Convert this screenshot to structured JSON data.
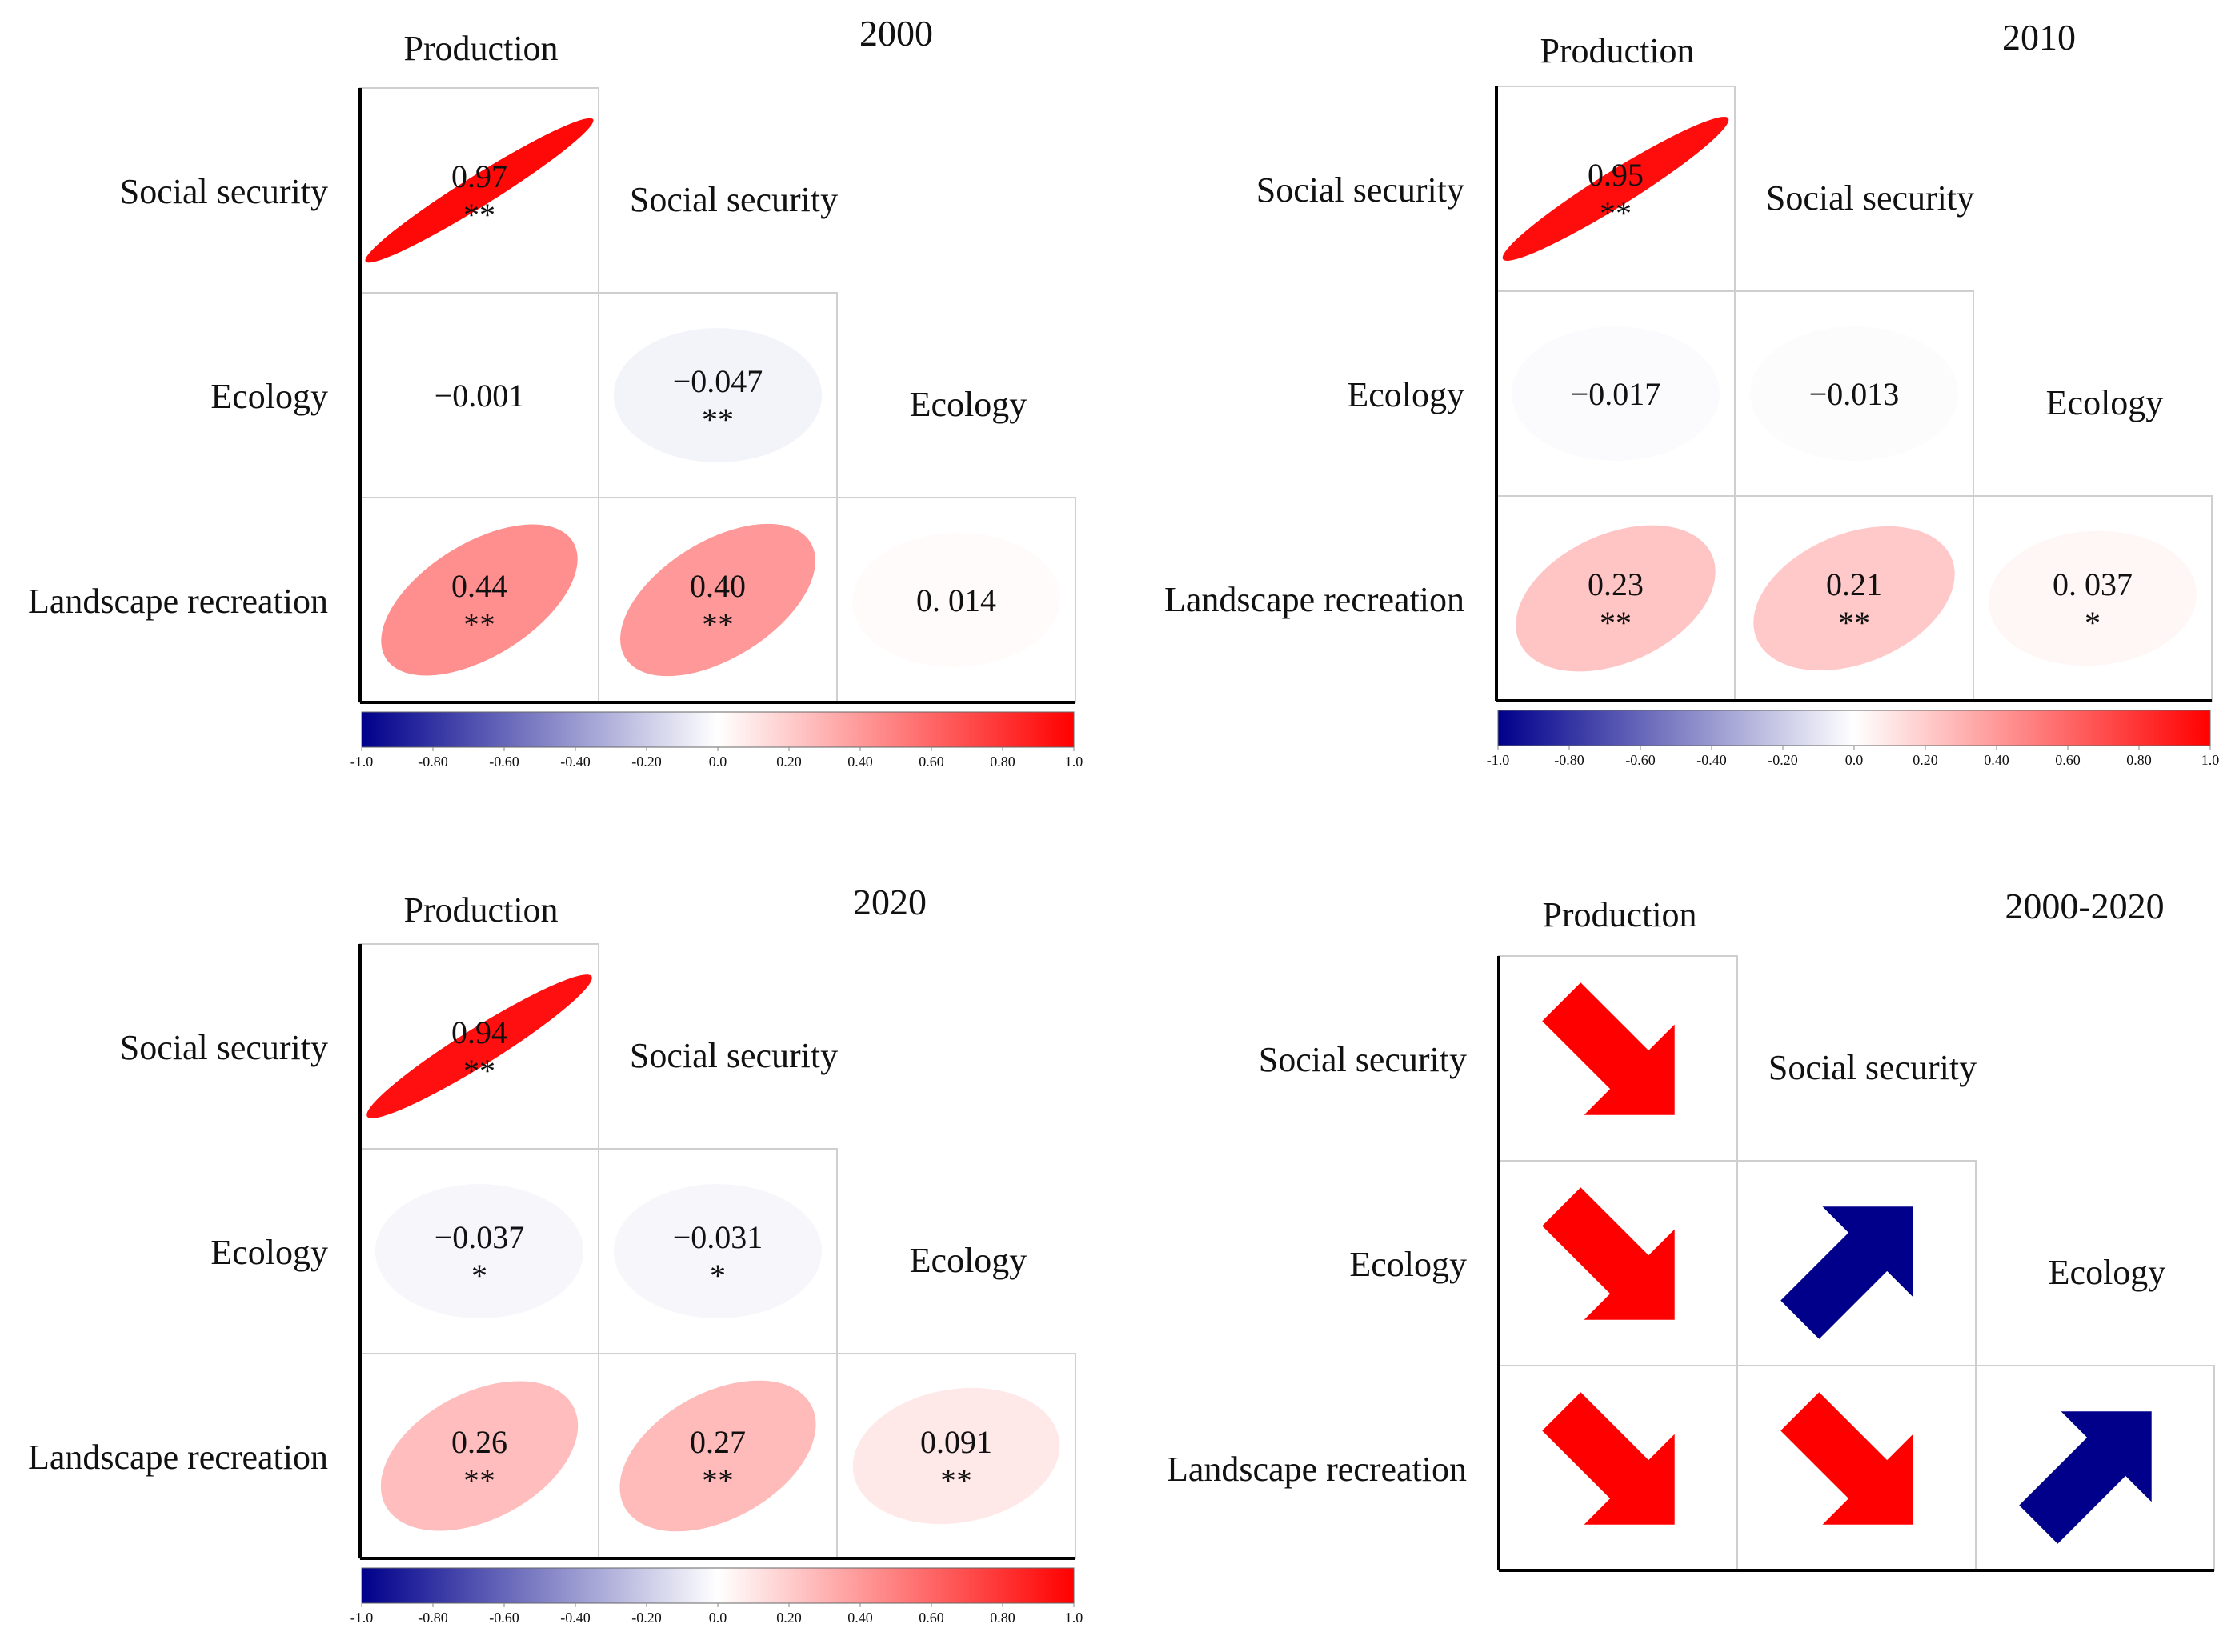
{
  "figure": {
    "row_labels": [
      "Social security",
      "Ecology",
      "Landscape recreation"
    ],
    "column_labels": [
      "Production",
      "Social security",
      "Ecology"
    ]
  },
  "chart_data": [
    {
      "type": "heatmap",
      "title": "2000",
      "row_labels": [
        "Social security",
        "Ecology",
        "Landscape recreation"
      ],
      "column_labels": [
        "Production",
        "Social security",
        "Ecology"
      ],
      "cells": [
        {
          "row": 0,
          "col": 0,
          "value": 0.97,
          "label": "0.97",
          "sig": "**"
        },
        {
          "row": 1,
          "col": 0,
          "value": -0.001,
          "label": "−0.001",
          "sig": ""
        },
        {
          "row": 1,
          "col": 1,
          "value": -0.047,
          "label": "−0.047",
          "sig": "**"
        },
        {
          "row": 2,
          "col": 0,
          "value": 0.44,
          "label": "0.44",
          "sig": "**"
        },
        {
          "row": 2,
          "col": 1,
          "value": 0.4,
          "label": "0.40",
          "sig": "**"
        },
        {
          "row": 2,
          "col": 2,
          "value": 0.014,
          "label": "0. 014",
          "sig": ""
        }
      ],
      "colorbar": {
        "range": [
          -1.0,
          1.0
        ],
        "ticks": [
          "-1.0",
          "-0.80",
          "-0.60",
          "-0.40",
          "-0.20",
          "0.0",
          "0.20",
          "0.40",
          "0.60",
          "0.80",
          "1.0"
        ],
        "low_color": "#00008b",
        "mid_color": "#ffffff",
        "high_color": "#ff0000"
      }
    },
    {
      "type": "heatmap",
      "title": "2010",
      "row_labels": [
        "Social security",
        "Ecology",
        "Landscape recreation"
      ],
      "column_labels": [
        "Production",
        "Social security",
        "Ecology"
      ],
      "cells": [
        {
          "row": 0,
          "col": 0,
          "value": 0.95,
          "label": "0.95",
          "sig": "**"
        },
        {
          "row": 1,
          "col": 0,
          "value": -0.017,
          "label": "−0.017",
          "sig": ""
        },
        {
          "row": 1,
          "col": 1,
          "value": -0.013,
          "label": "−0.013",
          "sig": ""
        },
        {
          "row": 2,
          "col": 0,
          "value": 0.23,
          "label": "0.23",
          "sig": "**"
        },
        {
          "row": 2,
          "col": 1,
          "value": 0.21,
          "label": "0.21",
          "sig": "**"
        },
        {
          "row": 2,
          "col": 2,
          "value": 0.037,
          "label": "0. 037",
          "sig": "*"
        }
      ],
      "colorbar": {
        "range": [
          -1.0,
          1.0
        ],
        "ticks": [
          "-1.0",
          "-0.80",
          "-0.60",
          "-0.40",
          "-0.20",
          "0.0",
          "0.20",
          "0.40",
          "0.60",
          "0.80",
          "1.0"
        ],
        "low_color": "#00008b",
        "mid_color": "#ffffff",
        "high_color": "#ff0000"
      }
    },
    {
      "type": "heatmap",
      "title": "2020",
      "row_labels": [
        "Social security",
        "Ecology",
        "Landscape recreation"
      ],
      "column_labels": [
        "Production",
        "Social security",
        "Ecology"
      ],
      "cells": [
        {
          "row": 0,
          "col": 0,
          "value": 0.94,
          "label": "0.94",
          "sig": "**"
        },
        {
          "row": 1,
          "col": 0,
          "value": -0.037,
          "label": "−0.037",
          "sig": "*"
        },
        {
          "row": 1,
          "col": 1,
          "value": -0.031,
          "label": "−0.031",
          "sig": "*"
        },
        {
          "row": 2,
          "col": 0,
          "value": 0.26,
          "label": "0.26",
          "sig": "**"
        },
        {
          "row": 2,
          "col": 1,
          "value": 0.27,
          "label": "0.27",
          "sig": "**"
        },
        {
          "row": 2,
          "col": 2,
          "value": 0.091,
          "label": "0.091",
          "sig": "**"
        }
      ],
      "colorbar": {
        "range": [
          -1.0,
          1.0
        ],
        "ticks": [
          "-1.0",
          "-0.80",
          "-0.60",
          "-0.40",
          "-0.20",
          "0.0",
          "0.20",
          "0.40",
          "0.60",
          "0.80",
          "1.0"
        ],
        "low_color": "#00008b",
        "mid_color": "#ffffff",
        "high_color": "#ff0000"
      }
    },
    {
      "type": "heatmap",
      "title": "2000-2020",
      "row_labels": [
        "Social security",
        "Ecology",
        "Landscape recreation"
      ],
      "column_labels": [
        "Production",
        "Social security",
        "Ecology"
      ],
      "trend_cells": [
        {
          "row": 0,
          "col": 0,
          "direction": "down",
          "color": "#ff0000"
        },
        {
          "row": 1,
          "col": 0,
          "direction": "down",
          "color": "#ff0000"
        },
        {
          "row": 1,
          "col": 1,
          "direction": "up",
          "color": "#00008b"
        },
        {
          "row": 2,
          "col": 0,
          "direction": "down",
          "color": "#ff0000"
        },
        {
          "row": 2,
          "col": 1,
          "direction": "down",
          "color": "#ff0000"
        },
        {
          "row": 2,
          "col": 2,
          "direction": "up",
          "color": "#00008b"
        }
      ]
    }
  ]
}
